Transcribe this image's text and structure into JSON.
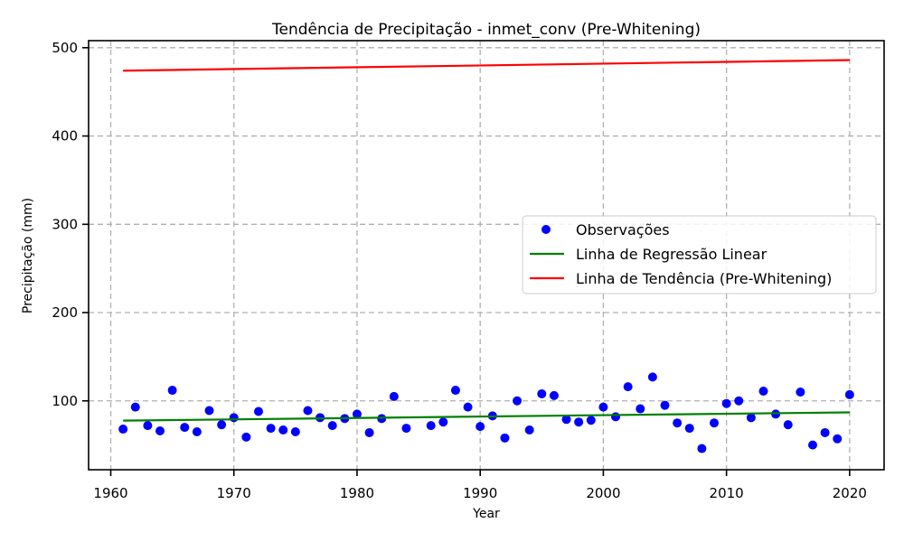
{
  "chart_data": {
    "type": "scatter",
    "title": "Tendência de Precipitação - inmet_conv (Pre-Whitening)",
    "xlabel": "Year",
    "ylabel": "Precipitação (mm)",
    "xlim": [
      1958.2,
      2022.8
    ],
    "ylim": [
      22,
      508
    ],
    "xticks": [
      1960,
      1970,
      1980,
      1990,
      2000,
      2010,
      2020
    ],
    "yticks": [
      100,
      200,
      300,
      400,
      500
    ],
    "grid": true,
    "legend_position": "center-right",
    "series": [
      {
        "name": "Observações",
        "kind": "scatter",
        "color": "#0000ff",
        "x": [
          1961,
          1962,
          1963,
          1964,
          1965,
          1966,
          1967,
          1968,
          1969,
          1970,
          1971,
          1972,
          1973,
          1974,
          1975,
          1976,
          1977,
          1978,
          1979,
          1980,
          1981,
          1982,
          1983,
          1984,
          1986,
          1987,
          1988,
          1989,
          1990,
          1991,
          1992,
          1993,
          1994,
          1995,
          1996,
          1997,
          1998,
          1999,
          2000,
          2001,
          2002,
          2003,
          2004,
          2005,
          2006,
          2007,
          2008,
          2009,
          2010,
          2011,
          2012,
          2013,
          2014,
          2015,
          2016,
          2017,
          2018,
          2019,
          2020
        ],
        "y": [
          68,
          93,
          72,
          66,
          112,
          70,
          65,
          89,
          73,
          81,
          59,
          88,
          69,
          67,
          65,
          89,
          81,
          72,
          80,
          85,
          64,
          80,
          105,
          69,
          72,
          76,
          112,
          93,
          71,
          83,
          58,
          100,
          67,
          108,
          106,
          79,
          76,
          78,
          93,
          82,
          116,
          91,
          127,
          95,
          75,
          69,
          46,
          75,
          97,
          100,
          81,
          111,
          85,
          73,
          110,
          50,
          64,
          57,
          107
        ]
      },
      {
        "name": "Linha de Regressão Linear",
        "kind": "line",
        "color": "#008000",
        "x": [
          1961,
          2020
        ],
        "y": [
          77.6,
          87.0
        ]
      },
      {
        "name": "Linha de Tendência (Pre-Whitening)",
        "kind": "line",
        "color": "#ff0000",
        "x": [
          1961,
          2020
        ],
        "y": [
          474,
          486
        ]
      }
    ]
  }
}
